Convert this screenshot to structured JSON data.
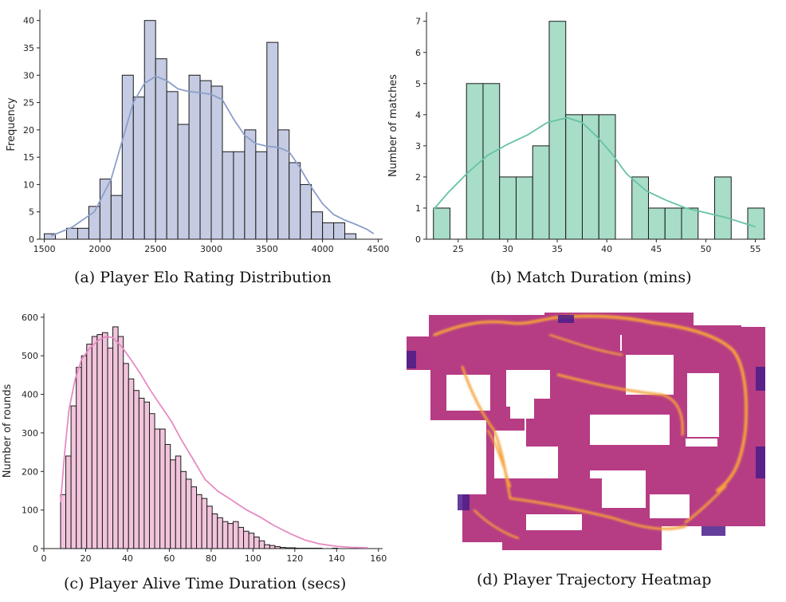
{
  "figure": {
    "captions": {
      "a": "(a) Player Elo Rating Distribution",
      "b": "(b) Match Duration (mins)",
      "c": "(c) Player Alive Time Duration (secs)",
      "d": "(d) Player Trajectory Heatmap"
    }
  },
  "chart_data": [
    {
      "id": "a",
      "type": "bar",
      "title": "(a) Player Elo Rating Distribution",
      "xlabel": "",
      "ylabel": "Frequency",
      "bin_start": 1500,
      "bin_width": 100,
      "values": [
        1,
        0,
        2,
        2,
        6,
        11,
        8,
        30,
        26,
        40,
        33,
        27,
        21,
        30,
        29,
        28,
        16,
        16,
        20,
        16,
        36,
        20,
        14,
        10,
        5,
        3,
        3,
        1
      ],
      "kde": [
        [
          1560,
          0.6
        ],
        [
          1750,
          2.2
        ],
        [
          1950,
          5
        ],
        [
          2100,
          11
        ],
        [
          2200,
          18
        ],
        [
          2300,
          25
        ],
        [
          2400,
          28.5
        ],
        [
          2500,
          29.8
        ],
        [
          2600,
          29
        ],
        [
          2700,
          27.5
        ],
        [
          2800,
          27
        ],
        [
          2900,
          26.8
        ],
        [
          3000,
          26.5
        ],
        [
          3100,
          25.5
        ],
        [
          3200,
          22
        ],
        [
          3300,
          19
        ],
        [
          3400,
          17.5
        ],
        [
          3500,
          17
        ],
        [
          3600,
          16.8
        ],
        [
          3700,
          16
        ],
        [
          3800,
          13
        ],
        [
          3900,
          9.5
        ],
        [
          4000,
          6.5
        ],
        [
          4100,
          4.5
        ],
        [
          4200,
          3.5
        ],
        [
          4300,
          2.7
        ],
        [
          4400,
          1.8
        ],
        [
          4460,
          1
        ]
      ],
      "xlim": [
        1460,
        4540
      ],
      "ylim": [
        0,
        42
      ],
      "xticks": [
        1500,
        2000,
        2500,
        3000,
        3500,
        4000,
        4500
      ],
      "yticks": [
        0,
        5,
        10,
        15,
        20,
        25,
        30,
        35,
        40
      ],
      "colors": {
        "bar": "#c5cbe3",
        "line": "#8c9fca"
      }
    },
    {
      "id": "b",
      "type": "bar",
      "title": "(b) Match Duration (mins)",
      "xlabel": "",
      "ylabel": "Number of matches",
      "bin_start": 22.5,
      "bin_width": 1.67,
      "values": [
        1,
        0,
        5,
        5,
        2,
        2,
        3,
        7,
        4,
        4,
        4,
        0,
        2,
        1,
        1,
        1,
        0,
        2,
        0,
        1
      ],
      "kde": [
        [
          22.5,
          0.95
        ],
        [
          24,
          1.5
        ],
        [
          26,
          2.15
        ],
        [
          28,
          2.7
        ],
        [
          30,
          3.05
        ],
        [
          32,
          3.35
        ],
        [
          34,
          3.75
        ],
        [
          36,
          3.9
        ],
        [
          37.5,
          3.75
        ],
        [
          39,
          3.3
        ],
        [
          40.5,
          2.75
        ],
        [
          42,
          2.1
        ],
        [
          44,
          1.55
        ],
        [
          46,
          1.25
        ],
        [
          48,
          1.0
        ],
        [
          50,
          0.85
        ],
        [
          52,
          0.7
        ],
        [
          54,
          0.5
        ],
        [
          55,
          0.4
        ]
      ],
      "xlim": [
        21.8,
        56
      ],
      "ylim": [
        0,
        7.3
      ],
      "xticks": [
        25,
        30,
        35,
        40,
        45,
        50,
        55
      ],
      "yticks": [
        0,
        1,
        2,
        3,
        4,
        5,
        6,
        7
      ],
      "colors": {
        "bar": "#a8ddc8",
        "line": "#66c2a5"
      }
    },
    {
      "id": "c",
      "type": "bar",
      "title": "(c) Player Alive Time Duration (secs)",
      "xlabel": "",
      "ylabel": "Number of rounds",
      "bin_start": 8,
      "bin_width": 2.5,
      "values": [
        140,
        240,
        370,
        470,
        500,
        530,
        550,
        555,
        560,
        520,
        575,
        550,
        480,
        440,
        410,
        390,
        380,
        350,
        310,
        310,
        270,
        230,
        240,
        200,
        180,
        160,
        140,
        130,
        110,
        90,
        80,
        70,
        65,
        70,
        55,
        45,
        40,
        30,
        20,
        10,
        8,
        5,
        3,
        2,
        2,
        1,
        1,
        1,
        1,
        1,
        0,
        0,
        1
      ],
      "kde": [
        [
          8,
          120
        ],
        [
          10,
          250
        ],
        [
          12,
          360
        ],
        [
          15,
          440
        ],
        [
          18,
          490
        ],
        [
          22,
          520
        ],
        [
          26,
          540
        ],
        [
          30,
          550
        ],
        [
          33,
          547
        ],
        [
          37,
          525
        ],
        [
          41,
          495
        ],
        [
          46,
          455
        ],
        [
          51,
          410
        ],
        [
          56,
          370
        ],
        [
          61,
          330
        ],
        [
          66,
          280
        ],
        [
          71,
          235
        ],
        [
          77,
          180
        ],
        [
          83,
          150
        ],
        [
          90,
          125
        ],
        [
          97,
          100
        ],
        [
          104,
          80
        ],
        [
          110,
          60
        ],
        [
          118,
          38
        ],
        [
          125,
          22
        ],
        [
          132,
          12
        ],
        [
          140,
          6
        ],
        [
          147,
          3
        ],
        [
          155,
          2
        ]
      ],
      "xlim": [
        0,
        162
      ],
      "ylim": [
        0,
        610
      ],
      "xticks": [
        0,
        20,
        40,
        60,
        80,
        100,
        120,
        140,
        160
      ],
      "yticks": [
        0,
        100,
        200,
        300,
        400,
        500,
        600
      ],
      "colors": {
        "bar": "#f2c4dc",
        "line": "#e78ac3"
      }
    }
  ],
  "heatmap": {
    "caption": "(d) Player Trajectory Heatmap",
    "colormap": "plasma",
    "colors": {
      "low": "#5b1f8f",
      "mid": "#c9437c",
      "high": "#f7a036"
    }
  }
}
